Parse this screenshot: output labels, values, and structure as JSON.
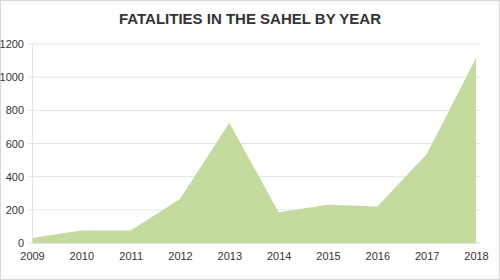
{
  "chart_data": {
    "type": "area",
    "title": "FATALITIES IN THE SAHEL BY YEAR",
    "x": [
      2009,
      2010,
      2011,
      2012,
      2013,
      2014,
      2015,
      2016,
      2017,
      2018
    ],
    "values": [
      30,
      75,
      75,
      265,
      725,
      185,
      230,
      220,
      535,
      1115
    ],
    "color": "#c5da9e",
    "xlim": [
      2009,
      2018
    ],
    "xticks": [
      2009,
      2010,
      2011,
      2012,
      2013,
      2014,
      2015,
      2016,
      2017,
      2018
    ],
    "ylim": [
      0,
      1200
    ],
    "yticks": [
      0,
      200,
      400,
      600,
      800,
      1000,
      1200
    ],
    "grid": true
  }
}
